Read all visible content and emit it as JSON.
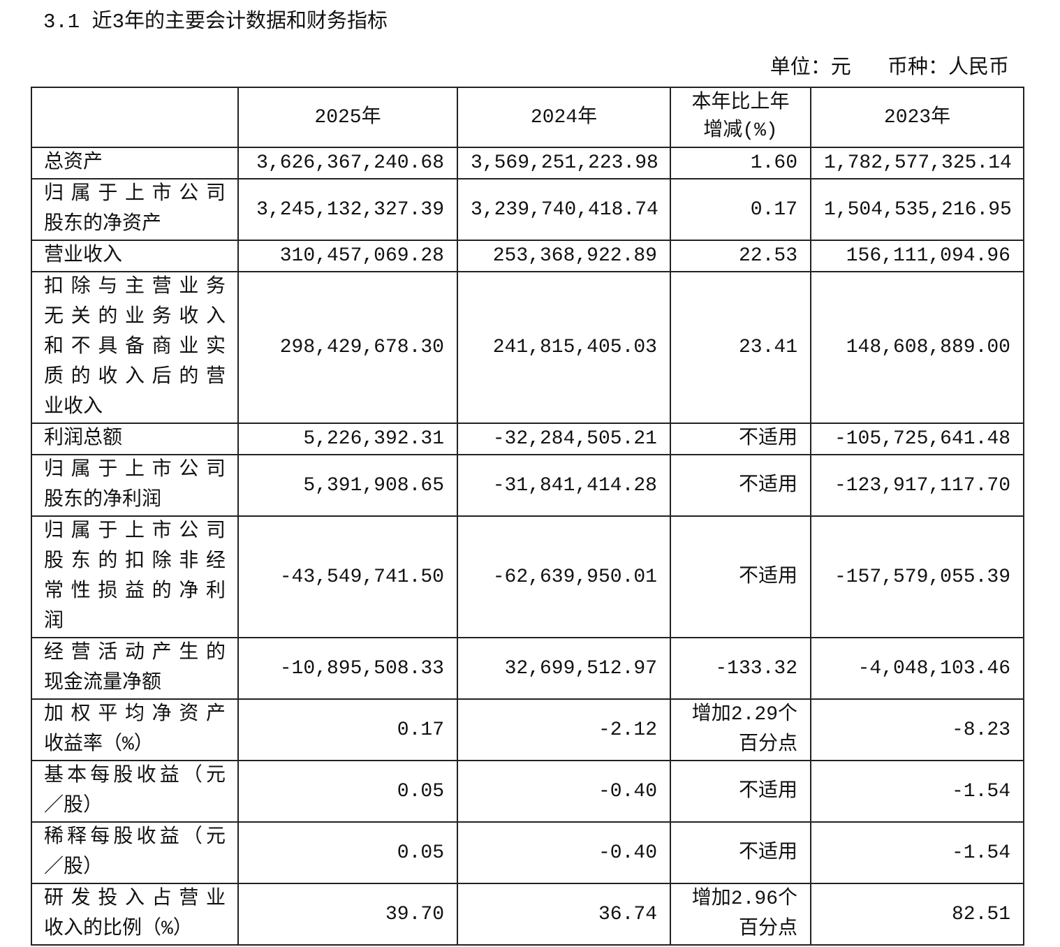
{
  "title": "3.1 近3年的主要会计数据和财务指标",
  "unit_note": "单位：元   币种：人民币",
  "table": {
    "headers": [
      "",
      "2025年",
      "2024年",
      "本年比上年\n增减(%)",
      "2023年"
    ],
    "rows": [
      {
        "label": [
          "总资产"
        ],
        "values": [
          "3,626,367,240.68",
          "3,569,251,223.98",
          "1.60",
          "1,782,577,325.14"
        ]
      },
      {
        "label": [
          "归属于上市公司",
          "股东的净资产"
        ],
        "values": [
          "3,245,132,327.39",
          "3,239,740,418.74",
          "0.17",
          "1,504,535,216.95"
        ]
      },
      {
        "label": [
          "营业收入"
        ],
        "values": [
          "310,457,069.28",
          "253,368,922.89",
          "22.53",
          "156,111,094.96"
        ]
      },
      {
        "label": [
          "扣除与主营业务",
          "无关的业务收入",
          "和不具备商业实",
          "质的收入后的营",
          "业收入"
        ],
        "values": [
          "298,429,678.30",
          "241,815,405.03",
          "23.41",
          "148,608,889.00"
        ]
      },
      {
        "label": [
          "利润总额"
        ],
        "values": [
          "5,226,392.31",
          "-32,284,505.21",
          "不适用",
          "-105,725,641.48"
        ]
      },
      {
        "label": [
          "归属于上市公司",
          "股东的净利润"
        ],
        "values": [
          "5,391,908.65",
          "-31,841,414.28",
          "不适用",
          "-123,917,117.70"
        ]
      },
      {
        "label": [
          "归属于上市公司",
          "股东的扣除非经",
          "常性损益的净利",
          "润"
        ],
        "values": [
          "-43,549,741.50",
          "-62,639,950.01",
          "不适用",
          "-157,579,055.39"
        ]
      },
      {
        "label": [
          "经营活动产生的",
          "现金流量净额"
        ],
        "values": [
          "-10,895,508.33",
          "32,699,512.97",
          "-133.32",
          "-4,048,103.46"
        ]
      },
      {
        "label": [
          "加权平均净资产",
          "收益率（%）"
        ],
        "values": [
          "0.17",
          "-2.12",
          "增加2.29个\n百分点",
          "-8.23"
        ]
      },
      {
        "label": [
          "基本每股收益（元",
          "／股）"
        ],
        "values": [
          "0.05",
          "-0.40",
          "不适用",
          "-1.54"
        ]
      },
      {
        "label": [
          "稀释每股收益（元",
          "／股）"
        ],
        "values": [
          "0.05",
          "-0.40",
          "不适用",
          "-1.54"
        ]
      },
      {
        "label": [
          "研发投入占营业",
          "收入的比例（%）"
        ],
        "values": [
          "39.70",
          "36.74",
          "增加2.96个\n百分点",
          "82.51"
        ]
      }
    ]
  }
}
